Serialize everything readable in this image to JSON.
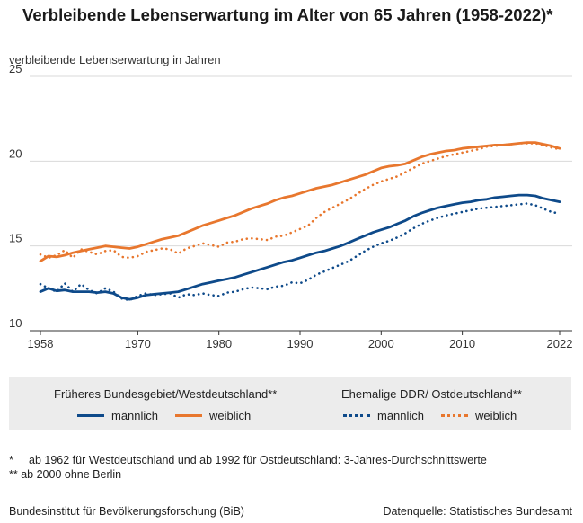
{
  "title": "Verbleibende Lebenserwartung im Alter von 65 Jahren (1958-2022)*",
  "legend": {
    "group_west": "Früheres Bundesgebiet/Westdeutschland**",
    "group_east": "Ehemalige DDR/ Ostdeutschland**",
    "male": "männlich",
    "female": "weiblich"
  },
  "notes": {
    "note1_marker": "*",
    "note1_text": "ab 1962 für Westdeutschland und ab 1992 für Ostdeutschland: 3-Jahres-Durchschnittswerte",
    "note2_marker": "**",
    "note2_text": "ab 2000 ohne Berlin"
  },
  "footer": {
    "source_left": "Bundesinstitut für Bevölkerungsforschung (BiB)",
    "source_right": "Datenquelle: Statistisches Bundesamt"
  },
  "colors": {
    "male": "#0e4a8a",
    "female": "#e8772e",
    "axis": "#333333",
    "grid": "#d9d9d9",
    "legend_bg": "#ececec"
  },
  "chart_data": {
    "type": "line",
    "title": "Verbleibende Lebenserwartung im Alter von 65 Jahren (1958-2022)*",
    "ylabel": "verbleibende Lebenserwartung in Jahren",
    "xlabel": "",
    "xlim": [
      1958,
      2022
    ],
    "ylim": [
      10,
      25
    ],
    "x_ticks": [
      1958,
      1970,
      1980,
      1990,
      2000,
      2010,
      2022
    ],
    "y_ticks": [
      10,
      15,
      20,
      25
    ],
    "grid": true,
    "legend_position": "bottom",
    "series": [
      {
        "name": "männlich",
        "group": "Früheres Bundesgebiet/Westdeutschland**",
        "style": "solid",
        "color": "#0e4a8a",
        "points": [
          [
            1958,
            12.3
          ],
          [
            1959,
            12.5
          ],
          [
            1960,
            12.35
          ],
          [
            1961,
            12.4
          ],
          [
            1962,
            12.3
          ],
          [
            1963,
            12.3
          ],
          [
            1964,
            12.3
          ],
          [
            1965,
            12.25
          ],
          [
            1966,
            12.3
          ],
          [
            1967,
            12.2
          ],
          [
            1968,
            11.95
          ],
          [
            1969,
            11.85
          ],
          [
            1970,
            11.95
          ],
          [
            1971,
            12.1
          ],
          [
            1972,
            12.15
          ],
          [
            1973,
            12.2
          ],
          [
            1974,
            12.25
          ],
          [
            1975,
            12.3
          ],
          [
            1976,
            12.45
          ],
          [
            1977,
            12.6
          ],
          [
            1978,
            12.75
          ],
          [
            1979,
            12.85
          ],
          [
            1980,
            12.95
          ],
          [
            1981,
            13.05
          ],
          [
            1982,
            13.15
          ],
          [
            1983,
            13.3
          ],
          [
            1984,
            13.45
          ],
          [
            1985,
            13.6
          ],
          [
            1986,
            13.75
          ],
          [
            1987,
            13.9
          ],
          [
            1988,
            14.05
          ],
          [
            1989,
            14.15
          ],
          [
            1990,
            14.3
          ],
          [
            1991,
            14.45
          ],
          [
            1992,
            14.6
          ],
          [
            1993,
            14.7
          ],
          [
            1994,
            14.85
          ],
          [
            1995,
            15.0
          ],
          [
            1996,
            15.2
          ],
          [
            1997,
            15.4
          ],
          [
            1998,
            15.6
          ],
          [
            1999,
            15.8
          ],
          [
            2000,
            15.95
          ],
          [
            2001,
            16.1
          ],
          [
            2002,
            16.3
          ],
          [
            2003,
            16.5
          ],
          [
            2004,
            16.75
          ],
          [
            2005,
            16.95
          ],
          [
            2006,
            17.1
          ],
          [
            2007,
            17.25
          ],
          [
            2008,
            17.35
          ],
          [
            2009,
            17.45
          ],
          [
            2010,
            17.55
          ],
          [
            2011,
            17.6
          ],
          [
            2012,
            17.7
          ],
          [
            2013,
            17.75
          ],
          [
            2014,
            17.85
          ],
          [
            2015,
            17.9
          ],
          [
            2016,
            17.95
          ],
          [
            2017,
            18.0
          ],
          [
            2018,
            18.0
          ],
          [
            2019,
            17.95
          ],
          [
            2020,
            17.8
          ],
          [
            2021,
            17.7
          ],
          [
            2022,
            17.6
          ]
        ]
      },
      {
        "name": "weiblich",
        "group": "Früheres Bundesgebiet/Westdeutschland**",
        "style": "solid",
        "color": "#e8772e",
        "points": [
          [
            1958,
            14.1
          ],
          [
            1959,
            14.4
          ],
          [
            1960,
            14.35
          ],
          [
            1961,
            14.45
          ],
          [
            1962,
            14.6
          ],
          [
            1963,
            14.7
          ],
          [
            1964,
            14.8
          ],
          [
            1965,
            14.9
          ],
          [
            1966,
            15.0
          ],
          [
            1967,
            14.95
          ],
          [
            1968,
            14.9
          ],
          [
            1969,
            14.85
          ],
          [
            1970,
            14.95
          ],
          [
            1971,
            15.1
          ],
          [
            1972,
            15.25
          ],
          [
            1973,
            15.4
          ],
          [
            1974,
            15.5
          ],
          [
            1975,
            15.6
          ],
          [
            1976,
            15.8
          ],
          [
            1977,
            16.0
          ],
          [
            1978,
            16.2
          ],
          [
            1979,
            16.35
          ],
          [
            1980,
            16.5
          ],
          [
            1981,
            16.65
          ],
          [
            1982,
            16.8
          ],
          [
            1983,
            17.0
          ],
          [
            1984,
            17.2
          ],
          [
            1985,
            17.35
          ],
          [
            1986,
            17.5
          ],
          [
            1987,
            17.7
          ],
          [
            1988,
            17.85
          ],
          [
            1989,
            17.95
          ],
          [
            1990,
            18.1
          ],
          [
            1991,
            18.25
          ],
          [
            1992,
            18.4
          ],
          [
            1993,
            18.5
          ],
          [
            1994,
            18.6
          ],
          [
            1995,
            18.75
          ],
          [
            1996,
            18.9
          ],
          [
            1997,
            19.05
          ],
          [
            1998,
            19.2
          ],
          [
            1999,
            19.4
          ],
          [
            2000,
            19.6
          ],
          [
            2001,
            19.7
          ],
          [
            2002,
            19.75
          ],
          [
            2003,
            19.85
          ],
          [
            2004,
            20.05
          ],
          [
            2005,
            20.25
          ],
          [
            2006,
            20.4
          ],
          [
            2007,
            20.5
          ],
          [
            2008,
            20.6
          ],
          [
            2009,
            20.65
          ],
          [
            2010,
            20.75
          ],
          [
            2011,
            20.8
          ],
          [
            2012,
            20.85
          ],
          [
            2013,
            20.9
          ],
          [
            2014,
            20.95
          ],
          [
            2015,
            20.95
          ],
          [
            2016,
            21.0
          ],
          [
            2017,
            21.05
          ],
          [
            2018,
            21.1
          ],
          [
            2019,
            21.1
          ],
          [
            2020,
            21.0
          ],
          [
            2021,
            20.9
          ],
          [
            2022,
            20.75
          ]
        ]
      },
      {
        "name": "männlich",
        "group": "Ehemalige DDR/ Ostdeutschland**",
        "style": "dotted",
        "color": "#0e4a8a",
        "points": [
          [
            1958,
            12.75
          ],
          [
            1959,
            12.5
          ],
          [
            1960,
            12.3
          ],
          [
            1961,
            12.8
          ],
          [
            1962,
            12.3
          ],
          [
            1963,
            12.75
          ],
          [
            1964,
            12.4
          ],
          [
            1965,
            12.2
          ],
          [
            1966,
            12.5
          ],
          [
            1967,
            12.3
          ],
          [
            1968,
            11.9
          ],
          [
            1969,
            11.8
          ],
          [
            1970,
            12.05
          ],
          [
            1971,
            12.2
          ],
          [
            1972,
            12.1
          ],
          [
            1973,
            12.15
          ],
          [
            1974,
            12.2
          ],
          [
            1975,
            11.95
          ],
          [
            1976,
            12.15
          ],
          [
            1977,
            12.1
          ],
          [
            1978,
            12.2
          ],
          [
            1979,
            12.1
          ],
          [
            1980,
            12.05
          ],
          [
            1981,
            12.25
          ],
          [
            1982,
            12.3
          ],
          [
            1983,
            12.45
          ],
          [
            1984,
            12.55
          ],
          [
            1985,
            12.5
          ],
          [
            1986,
            12.45
          ],
          [
            1987,
            12.6
          ],
          [
            1988,
            12.65
          ],
          [
            1989,
            12.85
          ],
          [
            1990,
            12.8
          ],
          [
            1991,
            13.0
          ],
          [
            1992,
            13.3
          ],
          [
            1993,
            13.5
          ],
          [
            1994,
            13.7
          ],
          [
            1995,
            13.9
          ],
          [
            1996,
            14.1
          ],
          [
            1997,
            14.4
          ],
          [
            1998,
            14.7
          ],
          [
            1999,
            14.95
          ],
          [
            2000,
            15.15
          ],
          [
            2001,
            15.3
          ],
          [
            2002,
            15.5
          ],
          [
            2003,
            15.75
          ],
          [
            2004,
            16.05
          ],
          [
            2005,
            16.3
          ],
          [
            2006,
            16.5
          ],
          [
            2007,
            16.65
          ],
          [
            2008,
            16.8
          ],
          [
            2009,
            16.9
          ],
          [
            2010,
            17.0
          ],
          [
            2011,
            17.1
          ],
          [
            2012,
            17.2
          ],
          [
            2013,
            17.25
          ],
          [
            2014,
            17.3
          ],
          [
            2015,
            17.35
          ],
          [
            2016,
            17.4
          ],
          [
            2017,
            17.45
          ],
          [
            2018,
            17.5
          ],
          [
            2019,
            17.4
          ],
          [
            2020,
            17.2
          ],
          [
            2021,
            17.0
          ],
          [
            2022,
            16.9
          ]
        ]
      },
      {
        "name": "weiblich",
        "group": "Ehemalige DDR/ Ostdeutschland**",
        "style": "dotted",
        "color": "#e8772e",
        "points": [
          [
            1958,
            14.5
          ],
          [
            1959,
            14.3
          ],
          [
            1960,
            14.45
          ],
          [
            1961,
            14.75
          ],
          [
            1962,
            14.3
          ],
          [
            1963,
            14.8
          ],
          [
            1964,
            14.65
          ],
          [
            1965,
            14.5
          ],
          [
            1966,
            14.7
          ],
          [
            1967,
            14.75
          ],
          [
            1968,
            14.35
          ],
          [
            1969,
            14.3
          ],
          [
            1970,
            14.4
          ],
          [
            1971,
            14.65
          ],
          [
            1972,
            14.75
          ],
          [
            1973,
            14.85
          ],
          [
            1974,
            14.8
          ],
          [
            1975,
            14.55
          ],
          [
            1976,
            14.85
          ],
          [
            1977,
            15.0
          ],
          [
            1978,
            15.15
          ],
          [
            1979,
            15.05
          ],
          [
            1980,
            14.95
          ],
          [
            1981,
            15.2
          ],
          [
            1982,
            15.25
          ],
          [
            1983,
            15.4
          ],
          [
            1984,
            15.45
          ],
          [
            1985,
            15.4
          ],
          [
            1986,
            15.35
          ],
          [
            1987,
            15.55
          ],
          [
            1988,
            15.6
          ],
          [
            1989,
            15.8
          ],
          [
            1990,
            16.0
          ],
          [
            1991,
            16.2
          ],
          [
            1992,
            16.65
          ],
          [
            1993,
            17.0
          ],
          [
            1994,
            17.25
          ],
          [
            1995,
            17.5
          ],
          [
            1996,
            17.75
          ],
          [
            1997,
            18.05
          ],
          [
            1998,
            18.35
          ],
          [
            1999,
            18.6
          ],
          [
            2000,
            18.8
          ],
          [
            2001,
            18.95
          ],
          [
            2002,
            19.1
          ],
          [
            2003,
            19.35
          ],
          [
            2004,
            19.6
          ],
          [
            2005,
            19.85
          ],
          [
            2006,
            20.0
          ],
          [
            2007,
            20.15
          ],
          [
            2008,
            20.3
          ],
          [
            2009,
            20.4
          ],
          [
            2010,
            20.5
          ],
          [
            2011,
            20.6
          ],
          [
            2012,
            20.7
          ],
          [
            2013,
            20.85
          ],
          [
            2014,
            20.9
          ],
          [
            2015,
            20.95
          ],
          [
            2016,
            21.0
          ],
          [
            2017,
            21.05
          ],
          [
            2018,
            21.05
          ],
          [
            2019,
            21.05
          ],
          [
            2020,
            20.95
          ],
          [
            2021,
            20.8
          ],
          [
            2022,
            20.7
          ]
        ]
      }
    ]
  }
}
